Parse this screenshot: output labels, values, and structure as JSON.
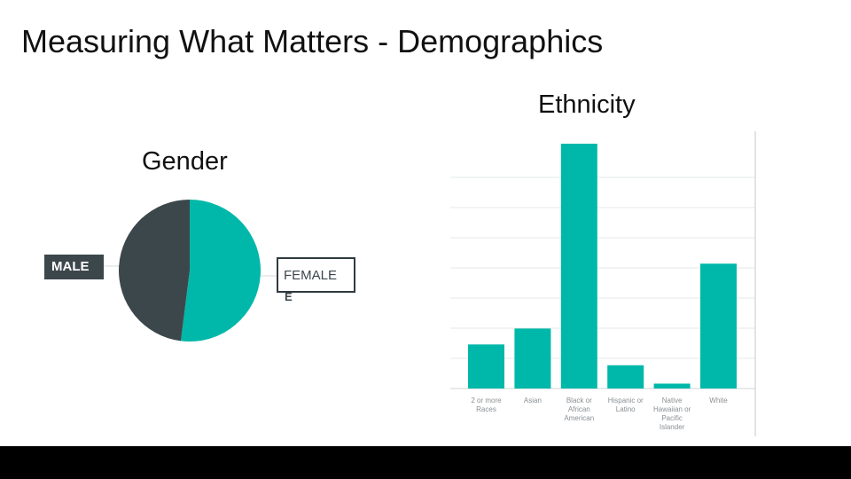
{
  "slide": {
    "title": "Measuring What Matters - Demographics"
  },
  "colors": {
    "teal": "#00b8a9",
    "dark": "#3c474c",
    "grid": "#e6e8e9",
    "axis": "#cfd3d5"
  },
  "chart_data": [
    {
      "type": "pie",
      "title": "Gender",
      "labels": [
        "MALE",
        "FEMALE"
      ],
      "values": [
        48,
        52
      ],
      "colors": [
        "#3c474c",
        "#00b8a9"
      ],
      "label_tail": "E"
    },
    {
      "type": "bar",
      "title": "Ethnicity",
      "categories": [
        [
          "2 or more",
          "Races"
        ],
        [
          "Asian"
        ],
        [
          "Black or",
          "African",
          "American"
        ],
        [
          "Hispanic or",
          "Latino"
        ],
        [
          "Native",
          "Hawaiian or",
          "Pacific",
          "Islander"
        ],
        [
          "White"
        ]
      ],
      "values": [
        18,
        24.5,
        100,
        9.5,
        2,
        51
      ],
      "ylim": [
        0,
        100
      ],
      "grid": true,
      "color": "#00b8a9"
    }
  ]
}
